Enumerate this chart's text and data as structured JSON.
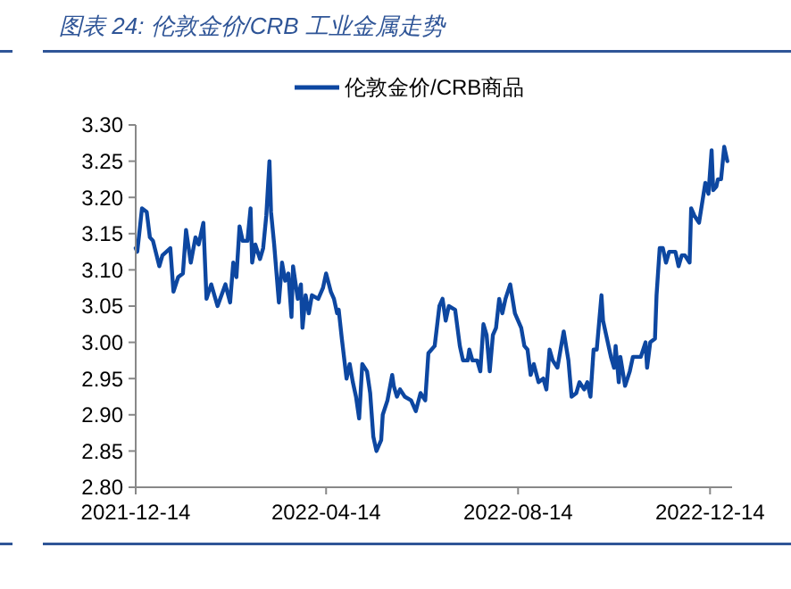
{
  "chart_data": {
    "type": "line",
    "title": "图表 24:  伦敦金价/CRB 工业金属走势",
    "legend": "top",
    "x": [
      "2021-12-14",
      "2021-12-15",
      "2021-12-18",
      "2021-12-21",
      "2021-12-23",
      "2021-12-25",
      "2021-12-29",
      "2021-12-31",
      "2022-01-05",
      "2022-01-07",
      "2022-01-10",
      "2022-01-13",
      "2022-01-15",
      "2022-01-18",
      "2022-01-21",
      "2022-01-23",
      "2022-01-26",
      "2022-01-28",
      "2022-01-31",
      "2022-02-04",
      "2022-02-09",
      "2022-02-12",
      "2022-02-14",
      "2022-02-16",
      "2022-02-18",
      "2022-02-20",
      "2022-02-23",
      "2022-02-25",
      "2022-02-26",
      "2022-02-28",
      "2022-03-03",
      "2022-03-05",
      "2022-03-07",
      "2022-03-09",
      "2022-03-10",
      "2022-03-12",
      "2022-03-15",
      "2022-03-17",
      "2022-03-19",
      "2022-03-21",
      "2022-03-23",
      "2022-03-24",
      "2022-03-27",
      "2022-03-29",
      "2022-03-30",
      "2022-04-01",
      "2022-04-03",
      "2022-04-05",
      "2022-04-09",
      "2022-04-12",
      "2022-04-14",
      "2022-04-17",
      "2022-04-19",
      "2022-04-21",
      "2022-04-22",
      "2022-04-24",
      "2022-04-27",
      "2022-04-29",
      "2022-05-01",
      "2022-05-03",
      "2022-05-05",
      "2022-05-07",
      "2022-05-10",
      "2022-05-12",
      "2022-05-14",
      "2022-05-16",
      "2022-05-19",
      "2022-05-20",
      "2022-05-23",
      "2022-05-26",
      "2022-05-27",
      "2022-05-29",
      "2022-05-31",
      "2022-06-03",
      "2022-06-07",
      "2022-06-10",
      "2022-06-13",
      "2022-06-16",
      "2022-06-18",
      "2022-06-22",
      "2022-06-25",
      "2022-06-27",
      "2022-06-29",
      "2022-07-01",
      "2022-07-05",
      "2022-07-08",
      "2022-07-10",
      "2022-07-13",
      "2022-07-14",
      "2022-07-16",
      "2022-07-19",
      "2022-07-21",
      "2022-07-23",
      "2022-07-25",
      "2022-07-27",
      "2022-07-29",
      "2022-07-31",
      "2022-08-02",
      "2022-08-04",
      "2022-08-06",
      "2022-08-09",
      "2022-08-12",
      "2022-08-16",
      "2022-08-18",
      "2022-08-20",
      "2022-08-22",
      "2022-08-24",
      "2022-08-27",
      "2022-08-30",
      "2022-09-01",
      "2022-09-03",
      "2022-09-05",
      "2022-09-08",
      "2022-09-10",
      "2022-09-12",
      "2022-09-15",
      "2022-09-17",
      "2022-09-20",
      "2022-09-22",
      "2022-09-25",
      "2022-09-27",
      "2022-09-29",
      "2022-10-01",
      "2022-10-03",
      "2022-10-06",
      "2022-10-07",
      "2022-10-09",
      "2022-10-12",
      "2022-10-14",
      "2022-10-15",
      "2022-10-17",
      "2022-10-18",
      "2022-10-21",
      "2022-10-24",
      "2022-10-26",
      "2022-10-28",
      "2022-10-31",
      "2022-11-03",
      "2022-11-04",
      "2022-11-06",
      "2022-11-09",
      "2022-11-10",
      "2022-11-12",
      "2022-11-14",
      "2022-11-16",
      "2022-11-18",
      "2022-11-22",
      "2022-11-24",
      "2022-11-26",
      "2022-11-28",
      "2022-12-01",
      "2022-12-02",
      "2022-12-04",
      "2022-12-07",
      "2022-12-11",
      "2022-12-13",
      "2022-12-15",
      "2022-12-16",
      "2022-12-18",
      "2022-12-19",
      "2022-12-21",
      "2022-12-23",
      "2022-12-25"
    ],
    "series": [
      {
        "name": "伦敦金价/CRB商品",
        "color": "#0d47a1",
        "values": [
          3.13,
          3.125,
          3.185,
          3.18,
          3.145,
          3.14,
          3.105,
          3.12,
          3.13,
          3.07,
          3.09,
          3.095,
          3.155,
          3.11,
          3.145,
          3.135,
          3.165,
          3.06,
          3.08,
          3.05,
          3.08,
          3.055,
          3.11,
          3.09,
          3.16,
          3.14,
          3.14,
          3.185,
          3.11,
          3.135,
          3.115,
          3.13,
          3.175,
          3.25,
          3.18,
          3.135,
          3.055,
          3.11,
          3.085,
          3.095,
          3.035,
          3.105,
          3.06,
          3.08,
          3.02,
          3.065,
          3.04,
          3.065,
          3.06,
          3.075,
          3.095,
          3.07,
          3.06,
          3.04,
          3.045,
          3.005,
          2.95,
          2.97,
          2.945,
          2.925,
          2.895,
          2.97,
          2.96,
          2.93,
          2.87,
          2.85,
          2.865,
          2.9,
          2.92,
          2.955,
          2.94,
          2.925,
          2.935,
          2.925,
          2.92,
          2.905,
          2.93,
          2.92,
          2.985,
          2.995,
          3.05,
          3.06,
          3.03,
          3.05,
          3.045,
          2.995,
          2.975,
          2.975,
          2.99,
          2.975,
          2.975,
          2.96,
          3.025,
          3.01,
          2.96,
          3.01,
          3.02,
          3.06,
          3.04,
          3.06,
          3.08,
          3.04,
          3.02,
          2.995,
          2.99,
          2.955,
          2.97,
          2.945,
          2.95,
          2.935,
          2.99,
          2.975,
          2.965,
          2.99,
          3.015,
          2.975,
          2.925,
          2.93,
          2.945,
          2.935,
          2.945,
          2.925,
          2.99,
          2.99,
          3.065,
          3.03,
          3.01,
          2.98,
          2.965,
          2.995,
          2.945,
          2.98,
          2.94,
          2.96,
          2.98,
          2.98,
          2.98,
          3.0,
          2.965,
          3.0,
          3.005,
          3.065,
          3.13,
          3.13,
          3.11,
          3.125,
          3.125,
          3.105,
          3.12,
          3.12,
          3.11,
          3.185,
          3.175,
          3.165,
          3.22,
          3.205,
          3.265,
          3.21,
          3.215,
          3.225,
          3.225,
          3.27,
          3.25
        ]
      }
    ],
    "xlim": [
      "2021-12-14",
      "2022-12-28"
    ],
    "xticks": [
      "2021-12-14",
      "2022-04-14",
      "2022-08-14",
      "2022-12-14"
    ],
    "ylim": [
      2.8,
      3.3
    ],
    "yticks": [
      {
        "value": 2.8,
        "label": "2.80"
      },
      {
        "value": 2.85,
        "label": "2.85"
      },
      {
        "value": 2.9,
        "label": "2.90"
      },
      {
        "value": 2.95,
        "label": "2.95"
      },
      {
        "value": 3.0,
        "label": "3.00"
      },
      {
        "value": 3.05,
        "label": "3.05"
      },
      {
        "value": 3.1,
        "label": "3.10"
      },
      {
        "value": 3.15,
        "label": "3.15"
      },
      {
        "value": 3.2,
        "label": "3.20"
      },
      {
        "value": 3.25,
        "label": "3.25"
      },
      {
        "value": 3.3,
        "label": "3.30"
      }
    ]
  }
}
